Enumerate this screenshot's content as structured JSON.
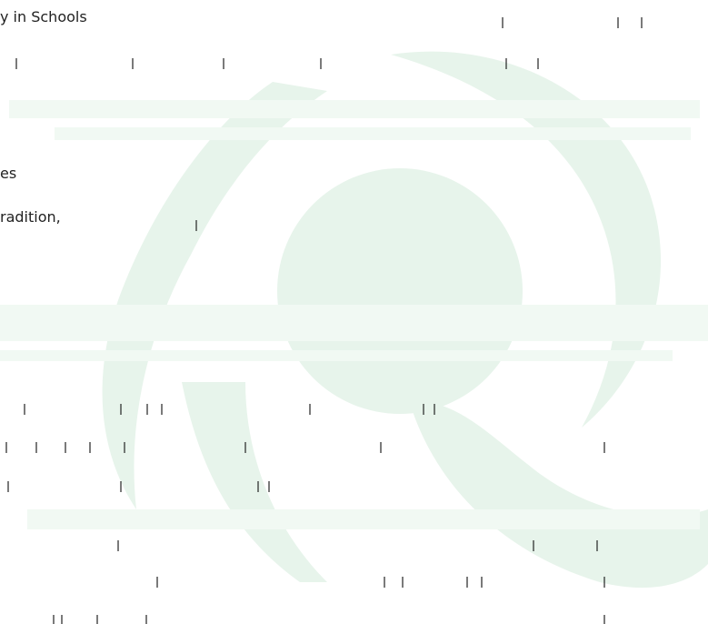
{
  "fragments": {
    "line_1": "y in Schools",
    "line_2": "es",
    "line_3": "radition,"
  }
}
